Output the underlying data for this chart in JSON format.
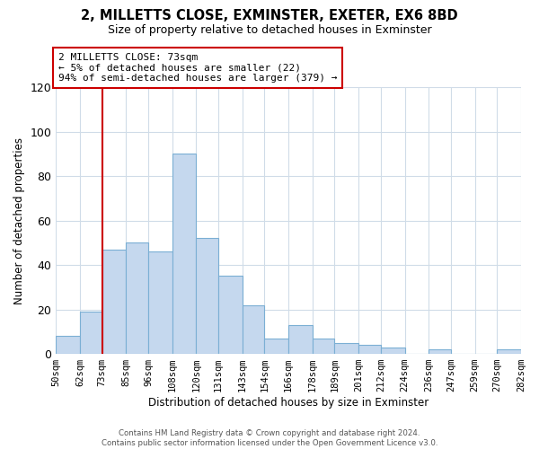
{
  "title": "2, MILLETTS CLOSE, EXMINSTER, EXETER, EX6 8BD",
  "subtitle": "Size of property relative to detached houses in Exminster",
  "xlabel": "Distribution of detached houses by size in Exminster",
  "ylabel": "Number of detached properties",
  "bin_labels": [
    "50sqm",
    "62sqm",
    "73sqm",
    "85sqm",
    "96sqm",
    "108sqm",
    "120sqm",
    "131sqm",
    "143sqm",
    "154sqm",
    "166sqm",
    "178sqm",
    "189sqm",
    "201sqm",
    "212sqm",
    "224sqm",
    "236sqm",
    "247sqm",
    "259sqm",
    "270sqm",
    "282sqm"
  ],
  "bar_heights": [
    8,
    19,
    47,
    50,
    46,
    90,
    52,
    35,
    22,
    7,
    13,
    7,
    5,
    4,
    3,
    0,
    2,
    0,
    0,
    2
  ],
  "bar_color": "#c5d8ee",
  "bar_edge_color": "#7bafd4",
  "highlight_color": "#cc0000",
  "ylim": [
    0,
    120
  ],
  "yticks": [
    0,
    20,
    40,
    60,
    80,
    100,
    120
  ],
  "annotation_title": "2 MILLETTS CLOSE: 73sqm",
  "annotation_line1": "← 5% of detached houses are smaller (22)",
  "annotation_line2": "94% of semi-detached houses are larger (379) →",
  "footer_line1": "Contains HM Land Registry data © Crown copyright and database right 2024.",
  "footer_line2": "Contains public sector information licensed under the Open Government Licence v3.0.",
  "background_color": "#ffffff",
  "grid_color": "#d0dce8"
}
